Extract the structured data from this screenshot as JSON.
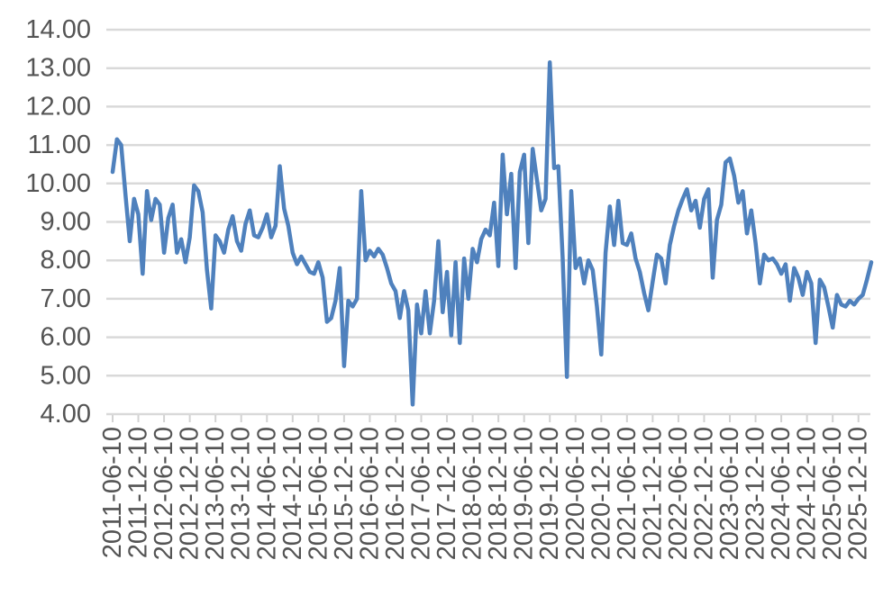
{
  "chart_data": {
    "type": "line",
    "title": "",
    "xlabel": "",
    "ylabel": "",
    "grid": "horizontal",
    "legend": "none",
    "ylim": [
      4,
      14
    ],
    "y_ticks": [
      14,
      13,
      12,
      11,
      10,
      9,
      8,
      7,
      6,
      5,
      4
    ],
    "y_tick_labels": [
      "14.00",
      "13.00",
      "12.00",
      "11.00",
      "10.00",
      "9.00",
      "8.00",
      "7.00",
      "6.00",
      "5.00",
      "4.00"
    ],
    "x_tick_labels": [
      "2011-06-10",
      "2011-12-10",
      "2012-06-10",
      "2012-12-10",
      "2013-06-10",
      "2013-12-10",
      "2014-06-10",
      "2014-12-10",
      "2015-06-10",
      "2015-12-10",
      "2016-06-10",
      "2016-12-10",
      "2017-06-10",
      "2017-12-10",
      "2018-06-10",
      "2018-12-10",
      "2019-06-10",
      "2019-12-10",
      "2020-06-10",
      "2020-12-10",
      "2021-06-10",
      "2021-12-10",
      "2022-06-10",
      "2022-12-10",
      "2023-06-10",
      "2023-12-10",
      "2024-06-10",
      "2024-12-10",
      "2025-06-10",
      "2025-12-10"
    ],
    "x_tick_every_n_points": 6,
    "series": [
      {
        "name": "value",
        "sampling": "monthly",
        "start": "2011-06",
        "color": "#4F81BD",
        "values": [
          10.3,
          11.15,
          11.0,
          9.7,
          8.5,
          9.6,
          9.2,
          7.65,
          9.8,
          9.05,
          9.6,
          9.45,
          8.2,
          9.1,
          9.45,
          8.2,
          8.55,
          7.95,
          8.6,
          9.95,
          9.8,
          9.25,
          7.75,
          6.75,
          8.65,
          8.5,
          8.2,
          8.8,
          9.15,
          8.5,
          8.25,
          8.95,
          9.3,
          8.65,
          8.6,
          8.85,
          9.2,
          8.6,
          8.9,
          10.45,
          9.35,
          8.9,
          8.2,
          7.9,
          8.1,
          7.9,
          7.7,
          7.65,
          7.95,
          7.55,
          6.4,
          6.5,
          6.95,
          7.8,
          5.25,
          6.95,
          6.8,
          7.0,
          9.8,
          8.0,
          8.25,
          8.1,
          8.3,
          8.15,
          7.8,
          7.4,
          7.2,
          6.5,
          7.2,
          6.7,
          4.25,
          6.85,
          6.1,
          7.2,
          6.1,
          6.95,
          8.5,
          6.65,
          7.7,
          6.05,
          7.95,
          5.85,
          8.05,
          7.0,
          8.3,
          7.95,
          8.55,
          8.8,
          8.65,
          9.5,
          7.85,
          10.75,
          9.2,
          10.25,
          7.8,
          10.3,
          10.75,
          8.45,
          10.9,
          10.1,
          9.3,
          9.6,
          13.15,
          10.4,
          10.45,
          8.05,
          4.97,
          9.8,
          7.8,
          8.05,
          7.4,
          8.0,
          7.75,
          6.8,
          5.55,
          8.2,
          9.4,
          8.4,
          9.55,
          8.45,
          8.4,
          8.7,
          8.05,
          7.7,
          7.15,
          6.7,
          7.45,
          8.15,
          8.05,
          7.4,
          8.4,
          8.9,
          9.3,
          9.6,
          9.85,
          9.3,
          9.55,
          8.85,
          9.6,
          9.85,
          7.55,
          9.05,
          9.45,
          10.55,
          10.65,
          10.2,
          9.5,
          9.8,
          8.7,
          9.3,
          8.45,
          7.4,
          8.15,
          8.0,
          8.05,
          7.9,
          7.65,
          7.9,
          6.95,
          7.8,
          7.55,
          7.1,
          7.7,
          7.4,
          5.85,
          7.5,
          7.3,
          6.8,
          6.25,
          7.1,
          6.85,
          6.8,
          6.95,
          6.85,
          7.0,
          7.1,
          7.5,
          7.95
        ]
      }
    ],
    "colors": {
      "line": "#4F81BD",
      "gridline": "#D9D9D9",
      "axis_line": "#D9D9D9",
      "tick_mark": "#D2D2D2",
      "label_text": "#545454",
      "background": "#FFFFFF"
    },
    "style": {
      "line_width": 4.5,
      "gridline_width": 2.5,
      "y_label_font_px": 29,
      "x_label_font_px": 29,
      "x_label_rotation_deg": -90
    }
  }
}
